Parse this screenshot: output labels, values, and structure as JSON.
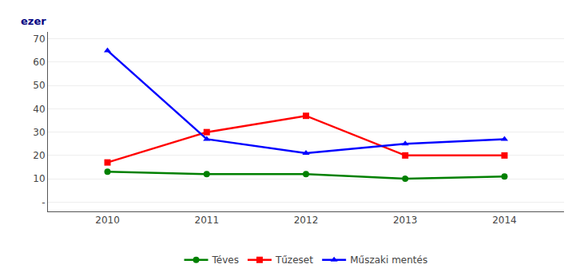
{
  "chart_data": {
    "type": "line",
    "ylabel": "ezer",
    "x": [
      2010,
      2011,
      2012,
      2013,
      2014
    ],
    "series": [
      {
        "name": "Téves",
        "color": "#008000",
        "marker": "circle",
        "values": [
          13,
          12,
          12,
          10,
          11
        ]
      },
      {
        "name": "Tűzeset",
        "color": "#ff0000",
        "marker": "square",
        "values": [
          17,
          30,
          37,
          20,
          20
        ]
      },
      {
        "name": "Műszaki mentés",
        "color": "#0000ff",
        "marker": "triangle",
        "values": [
          65,
          27,
          21,
          25,
          27
        ]
      }
    ],
    "xlim": [
      2009.4,
      2014.6
    ],
    "xticks": [
      2010,
      2011,
      2012,
      2013,
      2014
    ],
    "ylim": [
      -4,
      73
    ],
    "yticks": [
      {
        "value": 0,
        "label": "-"
      },
      10,
      20,
      30,
      40,
      50,
      60,
      70
    ],
    "grid": true,
    "legend": "bottom"
  }
}
